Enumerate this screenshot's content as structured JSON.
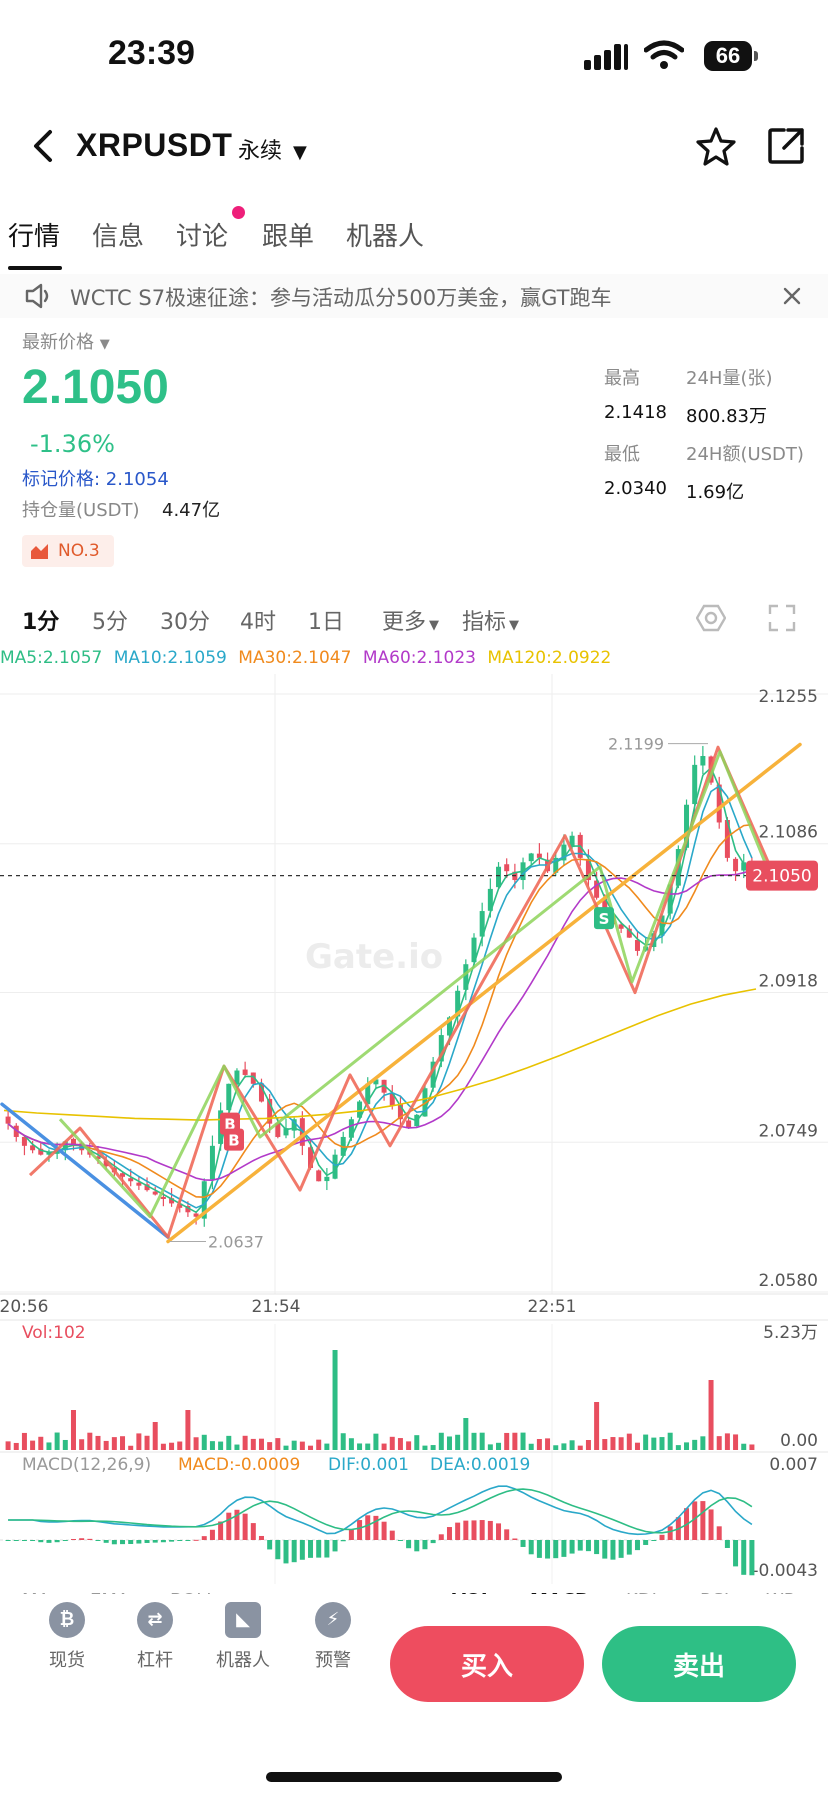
{
  "status": {
    "time": "23:39",
    "battery": "66"
  },
  "nav": {
    "symbol": "XRPUSDT",
    "contract": "永续"
  },
  "tabs": [
    {
      "label": "行情",
      "active": true
    },
    {
      "label": "信息"
    },
    {
      "label": "讨论",
      "dot": true
    },
    {
      "label": "跟单"
    },
    {
      "label": "机器人"
    }
  ],
  "notice": {
    "text": "WCTC S7极速征途：参与活动瓜分500万美金，赢GT跑车"
  },
  "ticker": {
    "latest_label": "最新价格",
    "price": "2.1050",
    "change_pct": "-1.36%",
    "mark_price": "标记价格: 2.1054",
    "open_interest_label": "持仓量(USDT)",
    "open_interest": "4.47亿",
    "rank_badge": "NO.3",
    "high_label": "最高",
    "high": "2.1418",
    "low_label": "最低",
    "low": "2.0340",
    "vol24_label": "24H量(张)",
    "vol24": "800.83万",
    "amt24_label": "24H额(USDT)",
    "amt24": "1.69亿"
  },
  "timeframes": [
    "1分",
    "5分",
    "30分",
    "4时",
    "1日"
  ],
  "more_label": "更多",
  "indicator_label": "指标",
  "ma_legend": [
    {
      "text": "MA5:2.1057",
      "color": "#2ebd85"
    },
    {
      "text": "MA10:2.1059",
      "color": "#2aa8c9"
    },
    {
      "text": "MA30:2.1047",
      "color": "#f08a1d"
    },
    {
      "text": "MA60:2.1023",
      "color": "#b23ac9"
    },
    {
      "text": "MA120:2.0922",
      "color": "#e8c200"
    }
  ],
  "chart_data": {
    "type": "candlestick",
    "y_axis_ticks": [
      "2.1255",
      "2.1086",
      "2.0918",
      "2.0749",
      "2.0580"
    ],
    "ylim": [
      2.058,
      2.1255
    ],
    "x_axis_ticks": [
      "20:56",
      "21:54",
      "22:51"
    ],
    "current_price_tag": "2.1050",
    "high_marker": "2.1199",
    "low_marker": "2.0637",
    "trade_markers": [
      "B",
      "B",
      "S"
    ],
    "watermark": "Gate.io",
    "close_series": [
      2.077,
      2.0755,
      2.0745,
      2.074,
      2.0735,
      2.0738,
      2.0742,
      2.075,
      2.0745,
      2.074,
      2.0735,
      2.073,
      2.0722,
      2.0715,
      2.071,
      2.0705,
      2.07,
      2.0695,
      2.069,
      2.0685,
      2.068,
      2.0675,
      2.067,
      2.0665,
      2.0705,
      2.0745,
      2.0785,
      2.0815,
      2.083,
      2.0825,
      2.0815,
      2.0795,
      2.077,
      2.0755,
      2.0765,
      2.0775,
      2.0745,
      2.072,
      2.0705,
      2.071,
      2.0735,
      2.0755,
      2.0775,
      2.0795,
      2.0815,
      2.082,
      2.0805,
      2.079,
      2.0775,
      2.0765,
      2.078,
      2.081,
      2.084,
      2.087,
      2.089,
      2.092,
      2.095,
      2.098,
      2.101,
      2.1035,
      2.106,
      2.1055,
      2.1045,
      2.1065,
      2.1075,
      2.107,
      2.1055,
      2.107,
      2.1085,
      2.1095,
      2.107,
      2.1045,
      2.1025,
      2.1005,
      2.0995,
      2.099,
      2.098,
      2.0965,
      2.097,
      2.0985,
      2.1005,
      2.104,
      2.108,
      2.113,
      2.1175,
      2.1185,
      2.1155,
      2.111,
      2.107,
      2.1055,
      2.1065,
      2.105
    ],
    "ma120_series": [
      2.0785,
      2.0782,
      2.078,
      2.0778,
      2.0776,
      2.0775,
      2.0774,
      2.0775,
      2.0776,
      2.0778,
      2.0781,
      2.0785,
      2.0791,
      2.0799,
      2.0809,
      2.082,
      2.0833,
      2.0847,
      2.0862,
      2.0877,
      2.0892,
      2.0905,
      2.0915,
      2.0922
    ],
    "volume": {
      "label": "Vol:102",
      "ymax_label": "5.23万",
      "ymin_label": "0.00"
    },
    "macd": {
      "params": "MACD(12,26,9)",
      "macd": "MACD:-0.0009",
      "dif": "DIF:0.001",
      "dea": "DEA:0.0019",
      "ymax_label": "0.007",
      "ymin_label": "-0.0043"
    },
    "sub_tabs": [
      "MA",
      "EMA",
      "BOLL",
      "VOL",
      "MACD",
      "KDJ",
      "RSI",
      "WR"
    ]
  },
  "bottom_nav": [
    {
      "label": "现货",
      "icon": "bitcoin-icon"
    },
    {
      "label": "杠杆",
      "icon": "leverage-icon"
    },
    {
      "label": "机器人",
      "icon": "robot-icon"
    },
    {
      "label": "预警",
      "icon": "alert-icon"
    }
  ],
  "buy_label": "买入",
  "sell_label": "卖出",
  "colors": {
    "up": "#2ebd85",
    "down": "#e84e5f",
    "buy": "#ee4d5f",
    "sell": "#2ebf85"
  }
}
